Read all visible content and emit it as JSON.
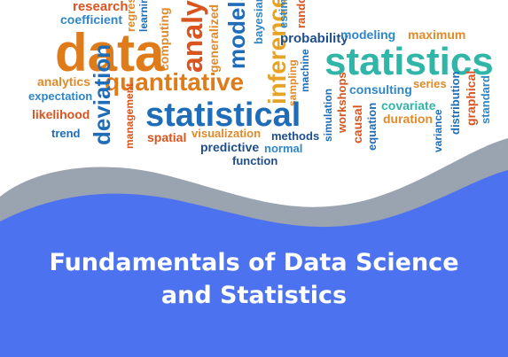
{
  "title": {
    "line1": "Fundamentals of Data Science",
    "line2": "and Statistics"
  },
  "word_cloud": [
    {
      "text": "research",
      "color": "#d9541e"
    },
    {
      "text": "coefficient",
      "color": "#2f86c6"
    },
    {
      "text": "regression",
      "color": "#e08a2a"
    },
    {
      "text": "learning",
      "color": "#1f6db8"
    },
    {
      "text": "computing",
      "color": "#e08a2a"
    },
    {
      "text": "analysis",
      "color": "#d9541e"
    },
    {
      "text": "generalized",
      "color": "#e08a2a"
    },
    {
      "text": "models",
      "color": "#1f6db8"
    },
    {
      "text": "bayesian",
      "color": "#2f86c6"
    },
    {
      "text": "inference",
      "color": "#e8a324"
    },
    {
      "text": "estimation",
      "color": "#2f86c6"
    },
    {
      "text": "random",
      "color": "#d9541e"
    },
    {
      "text": "data",
      "color": "#e07b1a"
    },
    {
      "text": "probability",
      "color": "#1f4e8c"
    },
    {
      "text": "modeling",
      "color": "#2f86c6"
    },
    {
      "text": "maximum",
      "color": "#e08a2a"
    },
    {
      "text": "statistics",
      "color": "#2fb6a8"
    },
    {
      "text": "analytics",
      "color": "#e08a2a"
    },
    {
      "text": "quantitative",
      "color": "#e07b1a"
    },
    {
      "text": "sampling",
      "color": "#e08a2a"
    },
    {
      "text": "machine",
      "color": "#1f6db8"
    },
    {
      "text": "workshops",
      "color": "#d9541e"
    },
    {
      "text": "consulting",
      "color": "#2f86c6"
    },
    {
      "text": "series",
      "color": "#e08a2a"
    },
    {
      "text": "distribution",
      "color": "#1f6db8"
    },
    {
      "text": "graphical",
      "color": "#d9541e"
    },
    {
      "text": "standard",
      "color": "#2f86c6"
    },
    {
      "text": "expectation",
      "color": "#2f86c6"
    },
    {
      "text": "likelihood",
      "color": "#d9541e"
    },
    {
      "text": "deviation",
      "color": "#1f6db8"
    },
    {
      "text": "statistical",
      "color": "#1f6db8"
    },
    {
      "text": "covariate",
      "color": "#2fb6a8"
    },
    {
      "text": "duration",
      "color": "#e08a2a"
    },
    {
      "text": "trend",
      "color": "#1f6db8"
    },
    {
      "text": "management",
      "color": "#d9541e"
    },
    {
      "text": "spatial",
      "color": "#d9541e"
    },
    {
      "text": "visualization",
      "color": "#e08a2a"
    },
    {
      "text": "methods",
      "color": "#1f4e8c"
    },
    {
      "text": "simulation",
      "color": "#1f6db8"
    },
    {
      "text": "causal",
      "color": "#d9541e"
    },
    {
      "text": "equation",
      "color": "#1f6db8"
    },
    {
      "text": "variance",
      "color": "#1f6db8"
    },
    {
      "text": "predictive",
      "color": "#1f4e8c"
    },
    {
      "text": "normal",
      "color": "#2f86c6"
    },
    {
      "text": "function",
      "color": "#1f4e8c"
    }
  ],
  "colors": {
    "banner": "#4d72f0",
    "wave_shadow": "#9aa3b0",
    "title_text": "#ffffff"
  }
}
